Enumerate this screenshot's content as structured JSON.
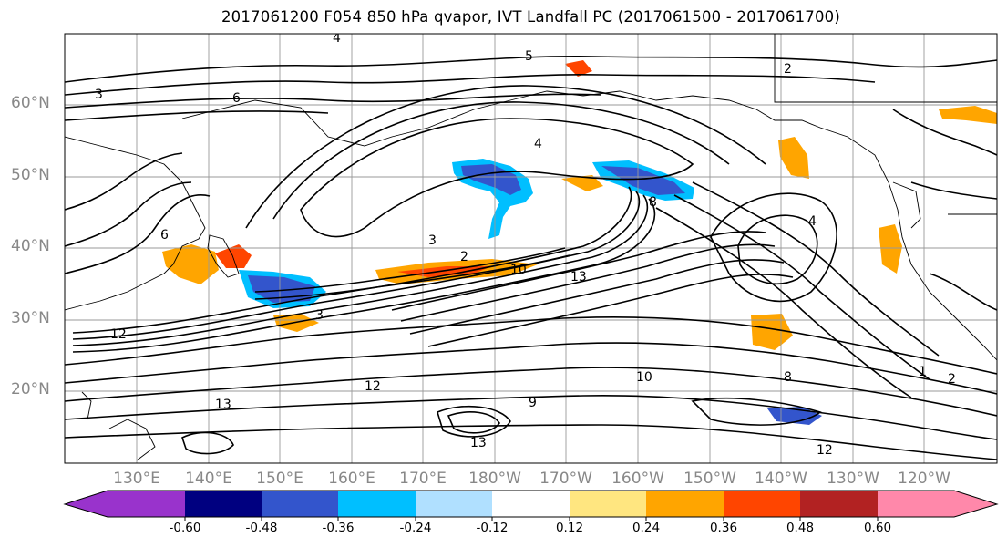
{
  "title": "2017061200 F054 850 hPa qvapor, IVT Landfall PC (2017061500 - 2017061700)",
  "chart_data": {
    "type": "contour-map",
    "field_filled": "850 hPa qvapor regression (PC)",
    "field_contoured": "850 hPa qvapor",
    "lat_range": [
      10,
      70
    ],
    "lon_range": [
      120,
      245
    ],
    "lat_ticks": [
      "60°N",
      "50°N",
      "40°N",
      "30°N",
      "20°N"
    ],
    "lon_ticks": [
      "130°E",
      "140°E",
      "150°E",
      "160°E",
      "170°E",
      "180°W",
      "170°W",
      "160°W",
      "150°W",
      "140°W",
      "130°W",
      "120°W"
    ],
    "colorbar": {
      "ticks": [
        "-0.60",
        "-0.48",
        "-0.36",
        "-0.24",
        "-0.12",
        "0.12",
        "0.24",
        "0.36",
        "0.48",
        "0.60"
      ],
      "colors": [
        "#9933cc",
        "#000080",
        "#3355cc",
        "#00bfff",
        "#b0e0ff",
        "#ffffff",
        "#ffe680",
        "#ffa500",
        "#ff4500",
        "#b22222",
        "#ff88aa"
      ]
    },
    "contour_labels": [
      "4",
      "3",
      "2",
      "6",
      "5",
      "4",
      "3",
      "2",
      "4",
      "8",
      "6",
      "10",
      "13",
      "12",
      "13",
      "3",
      "12",
      "9",
      "10",
      "12",
      "8",
      "2",
      "13",
      "1"
    ],
    "grid": true
  }
}
